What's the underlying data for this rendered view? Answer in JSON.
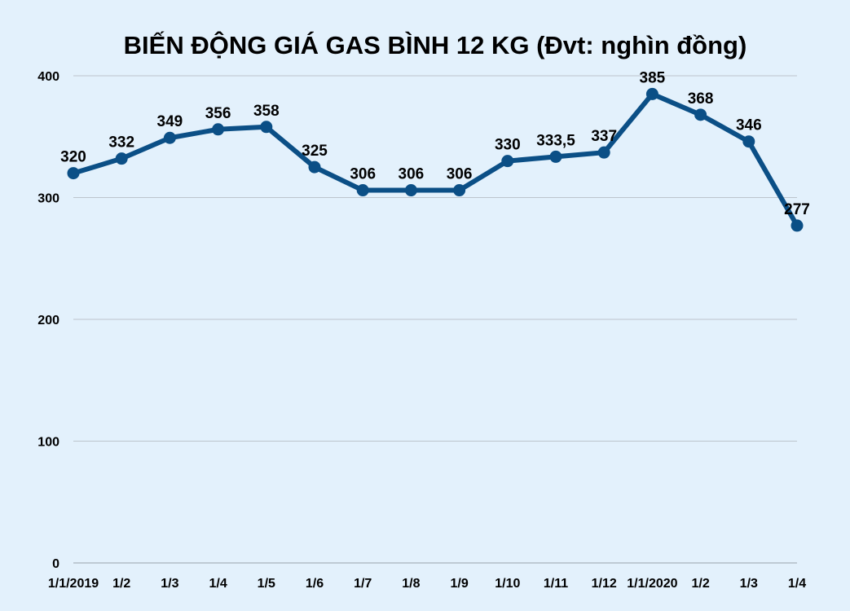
{
  "chart_data": {
    "type": "line",
    "title": "BIẾN ĐỘNG GIÁ GAS BÌNH 12 KG (Đvt: nghìn đồng)",
    "xlabel": "",
    "ylabel": "",
    "categories": [
      "1/1/2019",
      "1/2",
      "1/3",
      "1/4",
      "1/5",
      "1/6",
      "1/7",
      "1/8",
      "1/9",
      "1/10",
      "1/11",
      "1/12",
      "1/1/2020",
      "1/2",
      "1/3",
      "1/4"
    ],
    "values": [
      320,
      332,
      349,
      356,
      358,
      325,
      306,
      306,
      306,
      330,
      333.5,
      337,
      385,
      368,
      346,
      277
    ],
    "data_labels": [
      "320",
      "332",
      "349",
      "356",
      "358",
      "325",
      "306",
      "306",
      "306",
      "330",
      "333,5",
      "337",
      "385",
      "368",
      "346",
      "277"
    ],
    "ylim": [
      0,
      400
    ],
    "yticks": [
      0,
      100,
      200,
      300,
      400
    ],
    "grid": true,
    "legend": "none",
    "colors": {
      "line": "#0b4f86",
      "marker": "#0b4f86",
      "background": "#e3f1fc"
    }
  }
}
